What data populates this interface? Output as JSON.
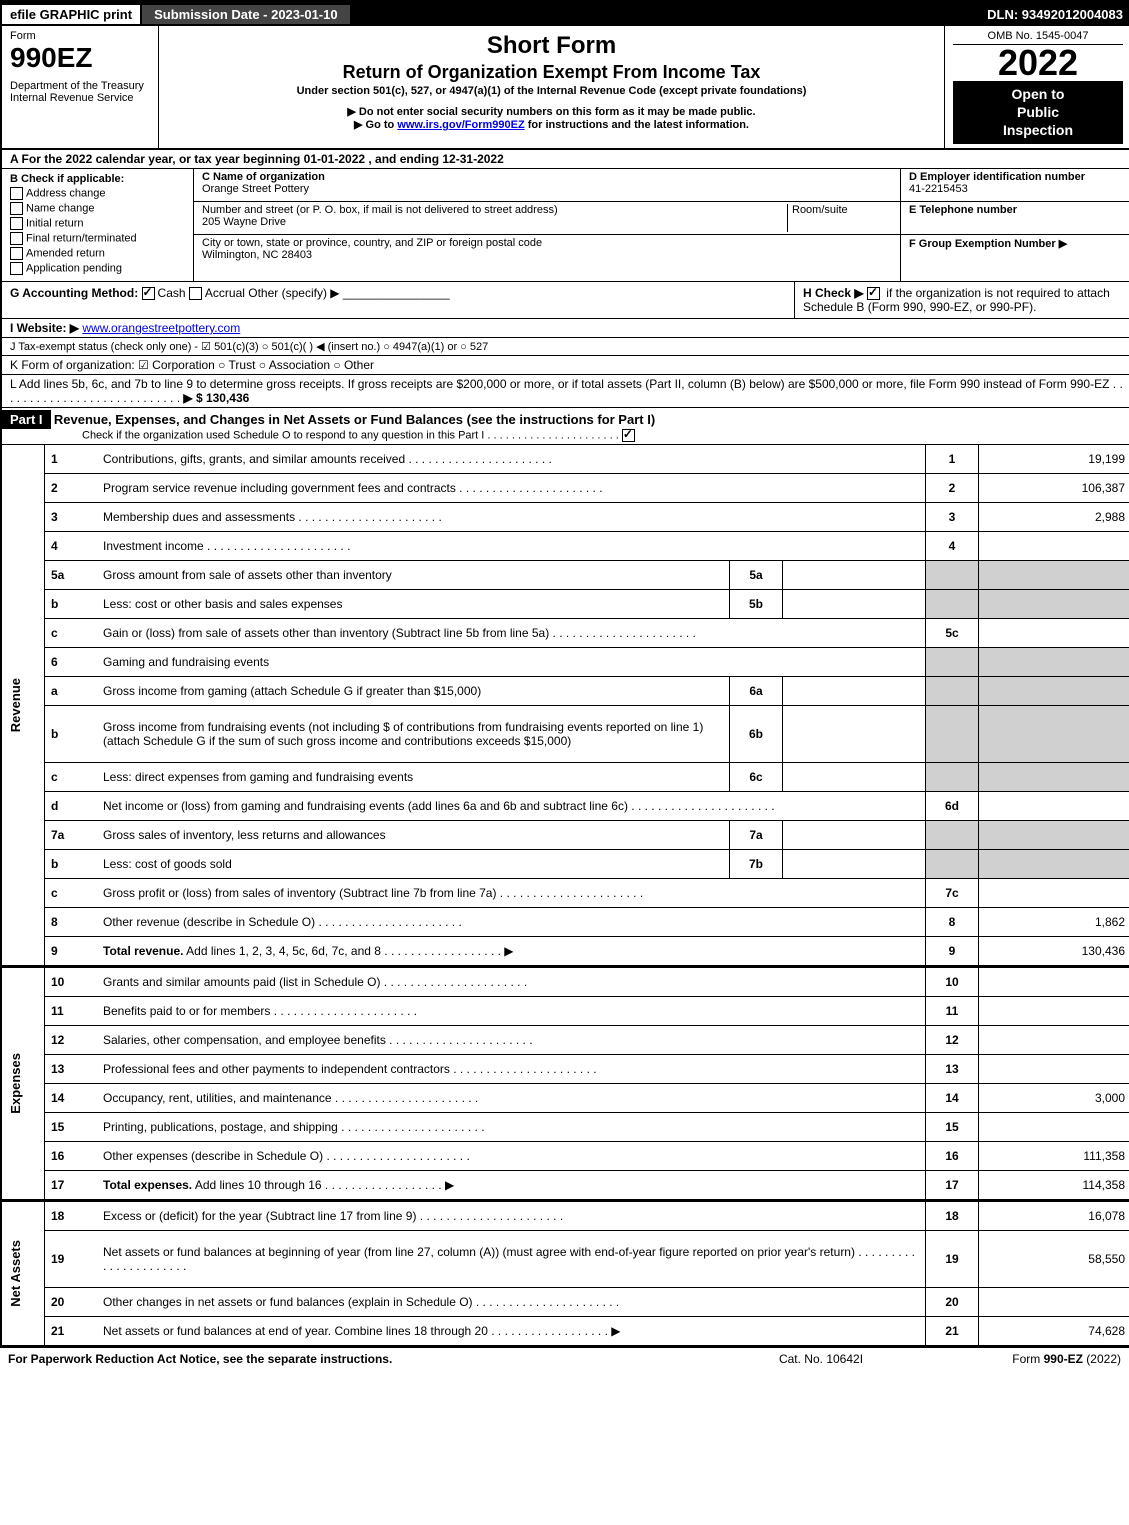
{
  "top": {
    "efile": "efile GRAPHIC print",
    "sub_date": "Submission Date - 2023-01-10",
    "dln": "DLN: 93492012004083"
  },
  "header": {
    "form_label": "Form",
    "form_num": "990EZ",
    "dept": "Department of the Treasury",
    "irs": "Internal Revenue Service",
    "title1": "Short Form",
    "title2": "Return of Organization Exempt From Income Tax",
    "sub": "Under section 501(c), 527, or 4947(a)(1) of the Internal Revenue Code (except private foundations)",
    "note1": "▶ Do not enter social security numbers on this form as it may be made public.",
    "note2": "▶ Go to www.irs.gov/Form990EZ for instructions and the latest information.",
    "omb": "OMB No. 1545-0047",
    "year": "2022",
    "inspect1": "Open to",
    "inspect2": "Public",
    "inspect3": "Inspection"
  },
  "sectionA": "A  For the 2022 calendar year, or tax year beginning 01-01-2022  , and ending 12-31-2022",
  "sectionB": {
    "title": "B  Check if applicable:",
    "opts": [
      "Address change",
      "Name change",
      "Initial return",
      "Final return/terminated",
      "Amended return",
      "Application pending"
    ]
  },
  "sectionC": {
    "label": "C Name of organization",
    "name": "Orange Street Pottery",
    "addr_label": "Number and street (or P. O. box, if mail is not delivered to street address)",
    "room": "Room/suite",
    "addr": "205 Wayne Drive",
    "city_label": "City or town, state or province, country, and ZIP or foreign postal code",
    "city": "Wilmington, NC  28403"
  },
  "sectionD": {
    "label": "D Employer identification number",
    "ein": "41-2215453"
  },
  "sectionE": {
    "label": "E Telephone number",
    "val": ""
  },
  "sectionF": {
    "label": "F Group Exemption Number  ▶",
    "val": ""
  },
  "sectionG": {
    "label": "G Accounting Method:",
    "cash": "Cash",
    "accrual": "Accrual",
    "other": "Other (specify) ▶"
  },
  "sectionH": {
    "label": "H  Check ▶",
    "text": "if the organization is not required to attach Schedule B (Form 990, 990-EZ, or 990-PF)."
  },
  "sectionI": {
    "label": "I Website: ▶",
    "url": "www.orangestreetpottery.com"
  },
  "sectionJ": "J Tax-exempt status (check only one) - ☑ 501(c)(3) ○ 501(c)(  ) ◀ (insert no.) ○ 4947(a)(1) or ○ 527",
  "sectionK": "K Form of organization:  ☑ Corporation  ○ Trust  ○ Association  ○ Other",
  "sectionL": {
    "text": "L Add lines 5b, 6c, and 7b to line 9 to determine gross receipts. If gross receipts are $200,000 or more, or if total assets (Part II, column (B) below) are $500,000 or more, file Form 990 instead of Form 990-EZ",
    "amount": "▶ $ 130,436"
  },
  "part1": {
    "label": "Part I",
    "title": "Revenue, Expenses, and Changes in Net Assets or Fund Balances (see the instructions for Part I)",
    "check": "Check if the organization used Schedule O to respond to any question in this Part I"
  },
  "sides": {
    "revenue": "Revenue",
    "expenses": "Expenses",
    "netassets": "Net Assets"
  },
  "lines": [
    {
      "n": "1",
      "d": "Contributions, gifts, grants, and similar amounts received",
      "ln": "1",
      "amt": "19,199"
    },
    {
      "n": "2",
      "d": "Program service revenue including government fees and contracts",
      "ln": "2",
      "amt": "106,387"
    },
    {
      "n": "3",
      "d": "Membership dues and assessments",
      "ln": "3",
      "amt": "2,988"
    },
    {
      "n": "4",
      "d": "Investment income",
      "ln": "4",
      "amt": ""
    },
    {
      "n": "5a",
      "d": "Gross amount from sale of assets other than inventory",
      "midn": "5a",
      "midv": "",
      "shade": true
    },
    {
      "n": "b",
      "d": "Less: cost or other basis and sales expenses",
      "midn": "5b",
      "midv": "",
      "shade": true
    },
    {
      "n": "c",
      "d": "Gain or (loss) from sale of assets other than inventory (Subtract line 5b from line 5a)",
      "ln": "5c",
      "amt": ""
    },
    {
      "n": "6",
      "d": "Gaming and fundraising events",
      "noborder": true,
      "shade": true
    },
    {
      "n": "a",
      "d": "Gross income from gaming (attach Schedule G if greater than $15,000)",
      "midn": "6a",
      "midv": "",
      "shade": true
    },
    {
      "n": "b",
      "d": "Gross income from fundraising events (not including $                       of contributions from fundraising events reported on line 1) (attach Schedule G if the sum of such gross income and contributions exceeds $15,000)",
      "midn": "6b",
      "midv": "",
      "shade": true,
      "tall": true
    },
    {
      "n": "c",
      "d": "Less: direct expenses from gaming and fundraising events",
      "midn": "6c",
      "midv": "",
      "shade": true
    },
    {
      "n": "d",
      "d": "Net income or (loss) from gaming and fundraising events (add lines 6a and 6b and subtract line 6c)",
      "ln": "6d",
      "amt": ""
    },
    {
      "n": "7a",
      "d": "Gross sales of inventory, less returns and allowances",
      "midn": "7a",
      "midv": "",
      "shade": true
    },
    {
      "n": "b",
      "d": "Less: cost of goods sold",
      "midn": "7b",
      "midv": "",
      "shade": true
    },
    {
      "n": "c",
      "d": "Gross profit or (loss) from sales of inventory (Subtract line 7b from line 7a)",
      "ln": "7c",
      "amt": ""
    },
    {
      "n": "8",
      "d": "Other revenue (describe in Schedule O)",
      "ln": "8",
      "amt": "1,862"
    },
    {
      "n": "9",
      "d": "Total revenue. Add lines 1, 2, 3, 4, 5c, 6d, 7c, and 8",
      "ln": "9",
      "amt": "130,436",
      "bold": true,
      "arrow": true
    }
  ],
  "expenses": [
    {
      "n": "10",
      "d": "Grants and similar amounts paid (list in Schedule O)",
      "ln": "10",
      "amt": ""
    },
    {
      "n": "11",
      "d": "Benefits paid to or for members",
      "ln": "11",
      "amt": ""
    },
    {
      "n": "12",
      "d": "Salaries, other compensation, and employee benefits",
      "ln": "12",
      "amt": ""
    },
    {
      "n": "13",
      "d": "Professional fees and other payments to independent contractors",
      "ln": "13",
      "amt": ""
    },
    {
      "n": "14",
      "d": "Occupancy, rent, utilities, and maintenance",
      "ln": "14",
      "amt": "3,000"
    },
    {
      "n": "15",
      "d": "Printing, publications, postage, and shipping",
      "ln": "15",
      "amt": ""
    },
    {
      "n": "16",
      "d": "Other expenses (describe in Schedule O)",
      "ln": "16",
      "amt": "111,358"
    },
    {
      "n": "17",
      "d": "Total expenses. Add lines 10 through 16",
      "ln": "17",
      "amt": "114,358",
      "bold": true,
      "arrow": true
    }
  ],
  "netassets": [
    {
      "n": "18",
      "d": "Excess or (deficit) for the year (Subtract line 17 from line 9)",
      "ln": "18",
      "amt": "16,078"
    },
    {
      "n": "19",
      "d": "Net assets or fund balances at beginning of year (from line 27, column (A)) (must agree with end-of-year figure reported on prior year's return)",
      "ln": "19",
      "amt": "58,550",
      "tall": true
    },
    {
      "n": "20",
      "d": "Other changes in net assets or fund balances (explain in Schedule O)",
      "ln": "20",
      "amt": ""
    },
    {
      "n": "21",
      "d": "Net assets or fund balances at end of year. Combine lines 18 through 20",
      "ln": "21",
      "amt": "74,628",
      "arrow": true
    }
  ],
  "footer": {
    "left": "For Paperwork Reduction Act Notice, see the separate instructions.",
    "mid": "Cat. No. 10642I",
    "right": "Form 990-EZ (2022)"
  }
}
